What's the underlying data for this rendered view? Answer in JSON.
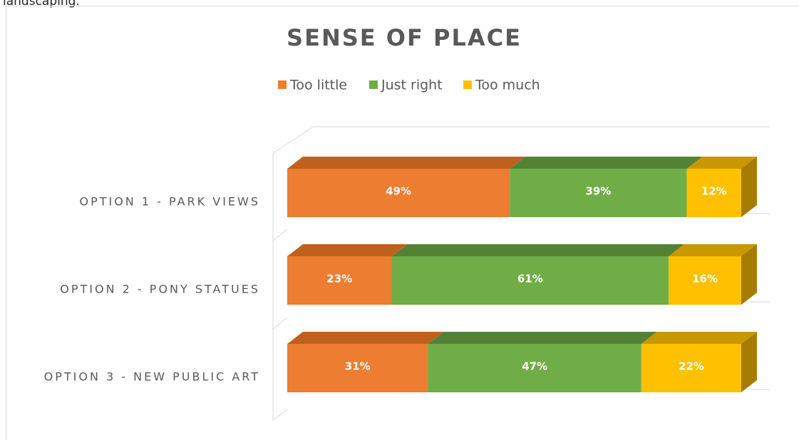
{
  "page_text": "landscaping.",
  "chart_data": {
    "type": "stacked-bar-3d",
    "title": "SENSE OF PLACE",
    "categories": [
      "OPTION 1 - PARK VIEWS",
      "OPTION 2 - PONY STATUES",
      "OPTION 3 - NEW PUBLIC ART"
    ],
    "series": [
      {
        "name": "Too little",
        "color": "#ed7d31",
        "top_color": "#c0601f",
        "values": [
          49,
          23,
          31
        ],
        "value_labels": [
          "49%",
          "23%",
          "31%"
        ]
      },
      {
        "name": "Just right",
        "color": "#70ad47",
        "top_color": "#548235",
        "values": [
          39,
          61,
          47
        ],
        "value_labels": [
          "39%",
          "61%",
          "47%"
        ]
      },
      {
        "name": "Too much",
        "color": "#ffc000",
        "top_color": "#c99700",
        "side_color": "#a67c00",
        "values": [
          12,
          16,
          22
        ],
        "value_labels": [
          "12%",
          "16%",
          "22%"
        ]
      }
    ],
    "legend": "top"
  }
}
